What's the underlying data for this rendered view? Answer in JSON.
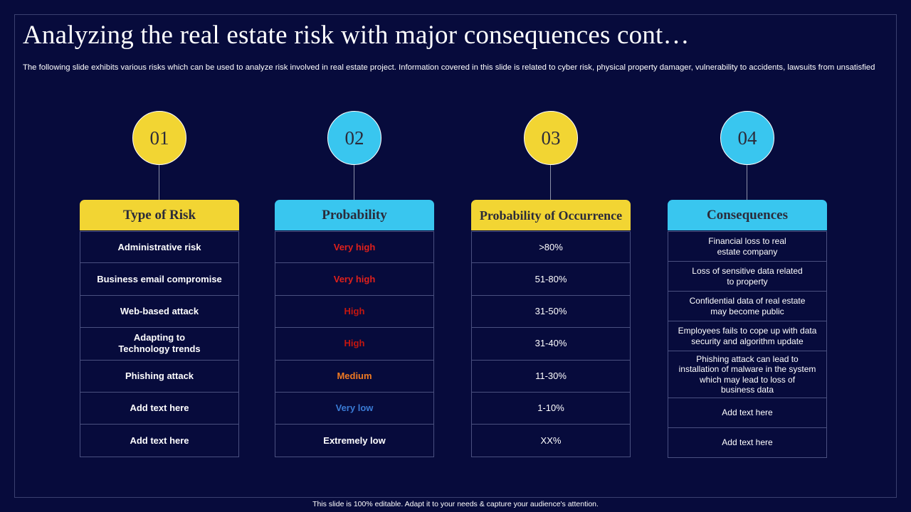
{
  "title": "Analyzing the real estate risk with major consequences cont…",
  "subtitle": "The following slide exhibits various risks which can be used to analyze risk involved in real estate project. Information covered in this slide is related to cyber risk, physical property damager, vulnerability to accidents, lawsuits from unsatisfied",
  "colors": {
    "background": "#070b3c",
    "yellow": "#f2d533",
    "cyan": "#39c6ef",
    "very_high": "#e0201b",
    "high": "#c4160f",
    "medium": "#f07a22",
    "very_low": "#3a7bd5",
    "extremely_low": "#ffffff"
  },
  "columns": [
    {
      "number": "01",
      "header": "Type of Risk",
      "rows": [
        "Administrative  risk",
        "Business  email compromise",
        "Web-based attack",
        "Adapting to\nTechnology trends",
        "Phishing attack",
        "Add text here",
        "Add text here"
      ]
    },
    {
      "number": "02",
      "header": "Probability",
      "rows": [
        "Very high",
        "Very high",
        "High",
        "High",
        "Medium",
        "Very low",
        "Extremely low"
      ]
    },
    {
      "number": "03",
      "header": "Probability of Occurrence",
      "rows": [
        ">80%",
        "51-80%",
        "31-50%",
        "31-40%",
        "11-30%",
        "1-10%",
        "XX%"
      ]
    },
    {
      "number": "04",
      "header": "Consequences",
      "rows": [
        "Financial loss to real\nestate company",
        "Loss of sensitive data related\nto property",
        "Confidential data of real estate\nmay become public",
        "Employees fails to cope up with data\nsecurity and algorithm update",
        "Phishing attack can lead to\ninstallation of malware in the system\nwhich may lead to loss of\nbusiness data",
        "Add text here",
        "Add text here"
      ]
    }
  ],
  "footer": "This slide is 100% editable.  Adapt it to your needs & capture your audience's attention."
}
